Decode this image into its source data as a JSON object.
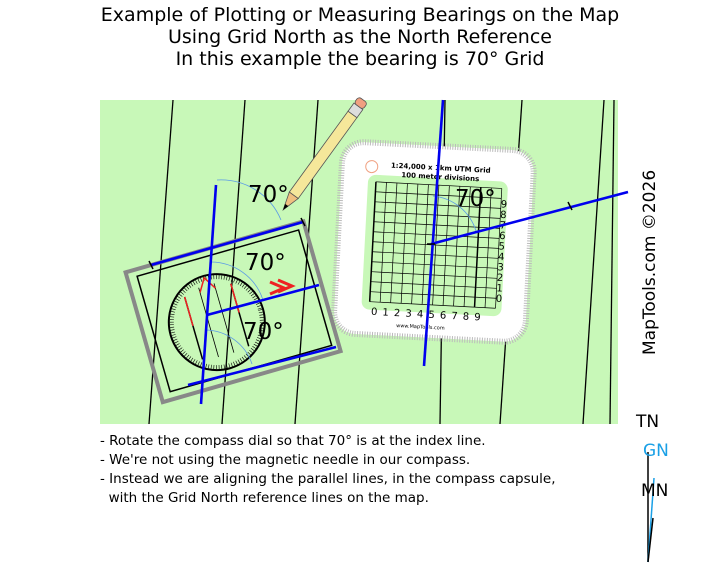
{
  "title": {
    "line1": "Example of Plotting or Measuring Bearings on the Map",
    "line2": "Using Grid North as the North Reference",
    "line3": "In this example the bearing is 70° Grid"
  },
  "copyright": "MapTools.com  ©2026",
  "angle_labels": [
    "70°",
    "70°",
    "70°",
    "70°"
  ],
  "bearing_degrees": 70,
  "overlay": {
    "title": "1:24,000 x 1km UTM Grid",
    "subtitle": "100 meter divisions",
    "website": "www.MapTools.com",
    "x_scale": [
      "0",
      "1",
      "2",
      "3",
      "4",
      "5",
      "6",
      "7",
      "8",
      "9"
    ],
    "y_scale": [
      "9",
      "8",
      "7",
      "6",
      "5",
      "4",
      "3",
      "2",
      "1",
      "0"
    ]
  },
  "notes": [
    "- Rotate the compass dial so that 70° is at the index line.",
    "- We're not using the magnetic needle in our compass.",
    "- Instead we are aligning the parallel lines, in the compass capsule,",
    "  with the Grid North reference lines on the map."
  ],
  "north_diagram": {
    "tn": "TN",
    "gn": "GN",
    "mn": "MN"
  },
  "colors": {
    "map": "#c8f8b8",
    "bearing_line": "#0000ee",
    "grid_north": "#1aa0e6",
    "needle": "#ee2222"
  }
}
